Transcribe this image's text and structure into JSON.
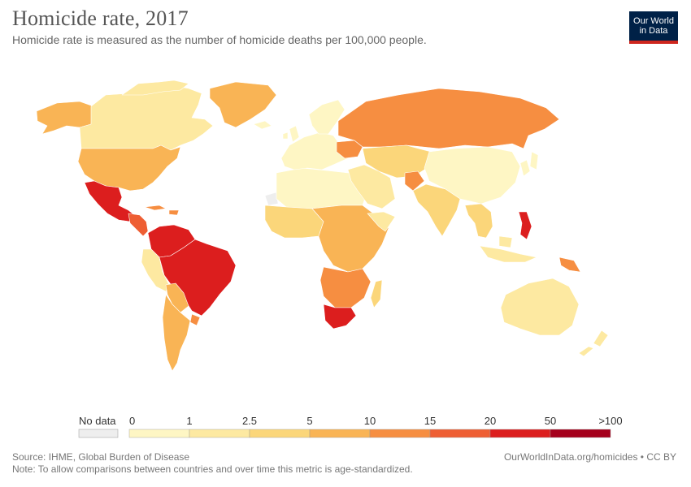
{
  "header": {
    "title": "Homicide rate, 2017",
    "subtitle": "Homicide rate is measured as the number of homicide deaths per 100,000 people."
  },
  "logo": {
    "line1": "Our World",
    "line2": "in Data",
    "bg_color": "#002147",
    "accent_color": "#ce261e"
  },
  "legend": {
    "no_data_label": "No data",
    "no_data_color": "#eeeeee",
    "bins": [
      {
        "from": "0",
        "to": "1",
        "color": "#fef6c4"
      },
      {
        "from": "1",
        "to": "2.5",
        "color": "#fde9a1"
      },
      {
        "from": "2.5",
        "to": "5",
        "color": "#fbd67a"
      },
      {
        "from": "5",
        "to": "10",
        "color": "#f9b455"
      },
      {
        "from": "10",
        "to": "15",
        "color": "#f68e41"
      },
      {
        "from": "15",
        "to": "20",
        "color": "#ee5e33"
      },
      {
        "from": "20",
        "to": "50",
        "color": "#dc1e1e"
      },
      {
        "from": "50",
        "to": ">100",
        "color": "#a5001c"
      }
    ]
  },
  "footer": {
    "source": "Source: IHME, Global Burden of Disease",
    "note": "Note: To allow comparisons between countries and over time this metric is age-standardized.",
    "url": "OurWorldInData.org/homicides • CC BY"
  }
}
